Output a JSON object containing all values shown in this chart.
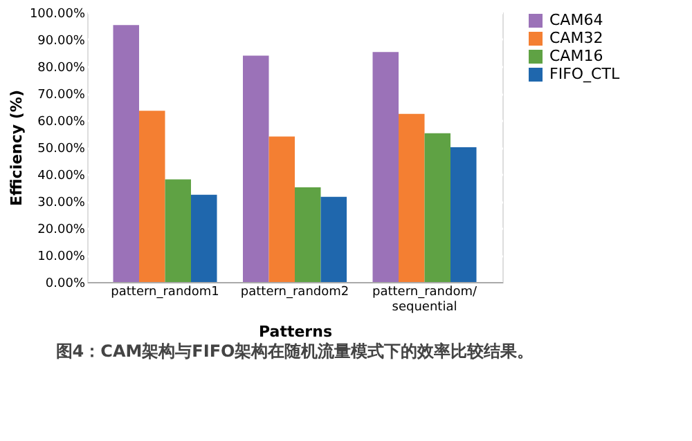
{
  "chart_data": {
    "type": "bar",
    "xlabel": "Patterns",
    "ylabel": "Efficiency (%)",
    "categories": [
      "pattern_random1",
      "pattern_random2",
      "pattern_random/\nsequential"
    ],
    "series": [
      {
        "name": "CAM64",
        "color": "#9b72b8",
        "values": [
          95.3,
          84,
          85.3
        ]
      },
      {
        "name": "CAM32",
        "color": "#f47f32",
        "values": [
          63.5,
          54,
          62.4
        ]
      },
      {
        "name": "CAM16",
        "color": "#5fa244",
        "values": [
          38.1,
          35.1,
          55.2
        ]
      },
      {
        "name": "FIFO_CTL",
        "color": "#1f67ad",
        "values": [
          32.4,
          31.6,
          50
        ]
      }
    ],
    "ylim": [
      0,
      100
    ],
    "yticks": [
      {
        "value": 0,
        "label": "0.00%"
      },
      {
        "value": 10,
        "label": "10.00%"
      },
      {
        "value": 20,
        "label": "20.00%"
      },
      {
        "value": 30,
        "label": "30.00%"
      },
      {
        "value": 40,
        "label": "40.00%"
      },
      {
        "value": 50,
        "label": "50.00%"
      },
      {
        "value": 60,
        "label": "60.00%"
      },
      {
        "value": 70,
        "label": "70.00%"
      },
      {
        "value": 80,
        "label": "80.00%"
      },
      {
        "value": 90,
        "label": "90.00%"
      },
      {
        "value": 100,
        "label": "100.00%"
      }
    ],
    "grid": "y",
    "legend": "right",
    "annotations": [
      "图4：CAM架构与FIFO架构在随机流量模式下的效率比较结果。"
    ]
  }
}
